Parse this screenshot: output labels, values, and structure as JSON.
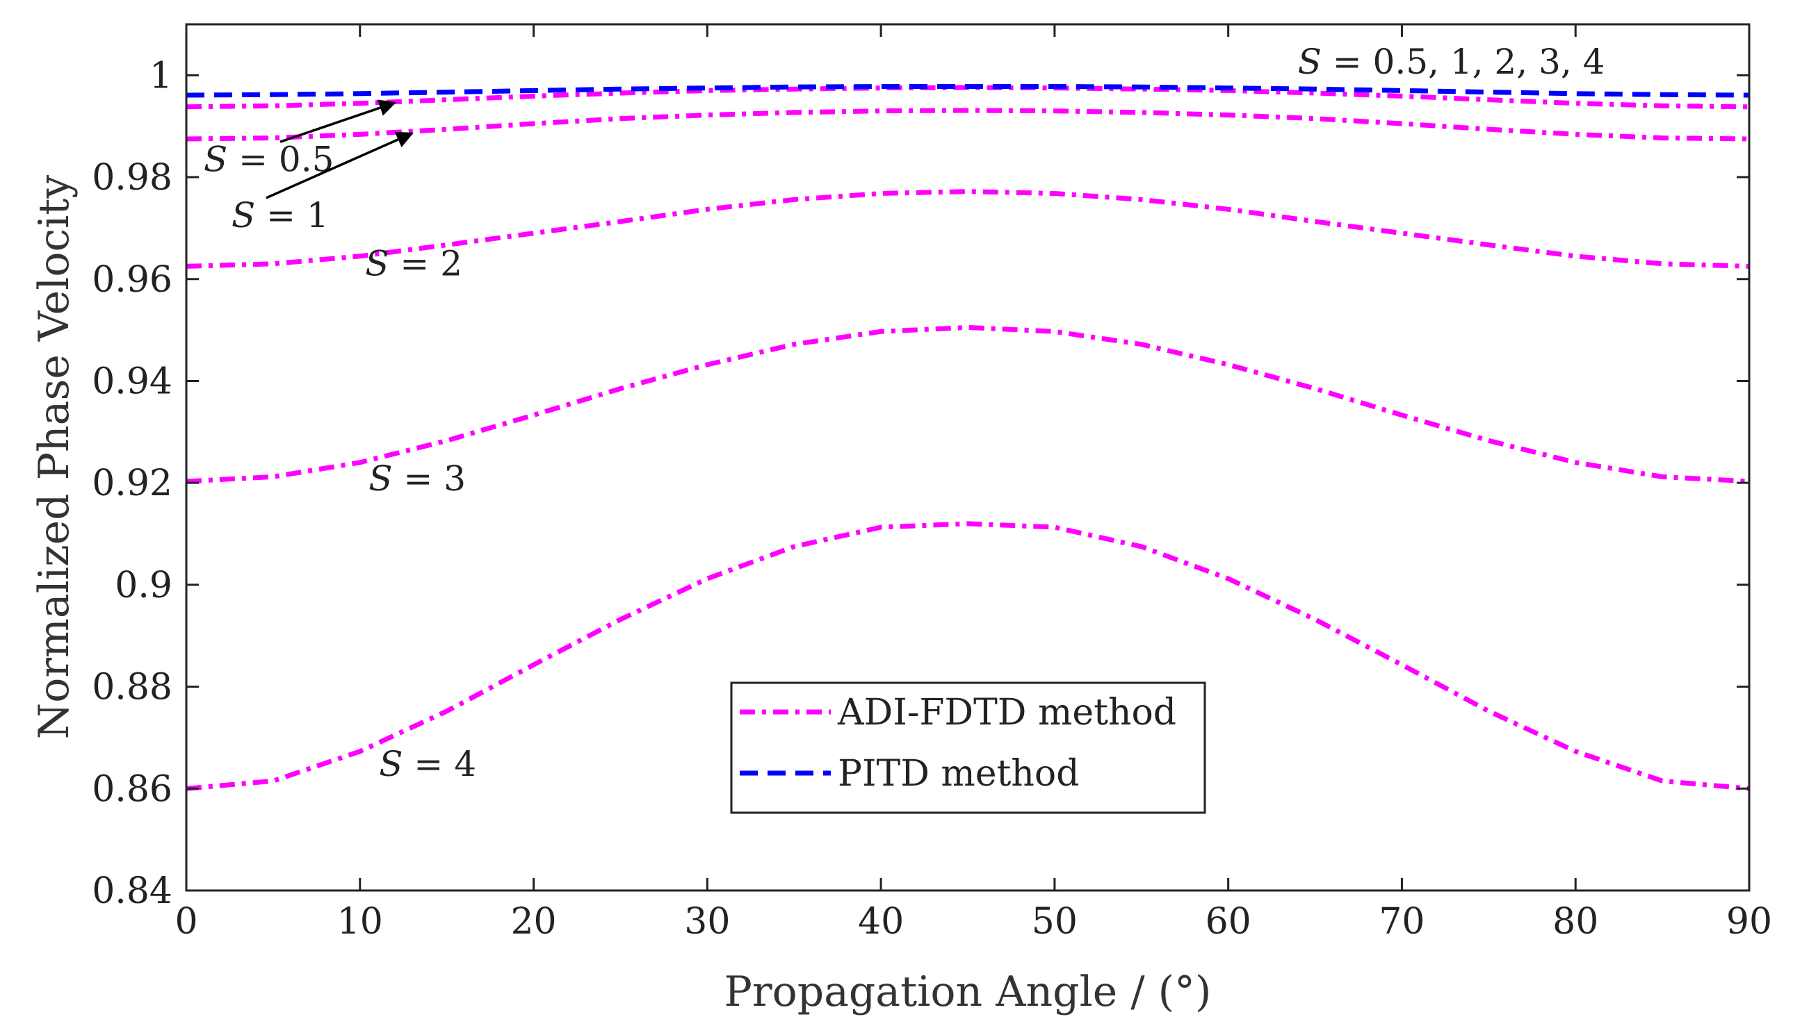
{
  "chart_data": {
    "type": "line",
    "title": "",
    "xlabel": "Propagation Angle / (°)",
    "ylabel": "Normalized Phase Velocity",
    "xlim": [
      0,
      90
    ],
    "ylim": [
      0.84,
      1.01
    ],
    "xticks": [
      0,
      10,
      20,
      30,
      40,
      50,
      60,
      70,
      80,
      90
    ],
    "xtick_labels": [
      "0",
      "10",
      "20",
      "30",
      "40",
      "50",
      "60",
      "70",
      "80",
      "90"
    ],
    "yticks": [
      0.84,
      0.86,
      0.88,
      0.9,
      0.92,
      0.94,
      0.96,
      0.98,
      1.0
    ],
    "ytick_labels": [
      "0.84",
      "0.86",
      "0.88",
      "0.9",
      "0.92",
      "0.94",
      "0.96",
      "0.98",
      "1"
    ],
    "grid": false,
    "legend_position": "lower-center",
    "x": [
      0,
      5,
      10,
      15,
      20,
      25,
      30,
      35,
      40,
      45,
      50,
      55,
      60,
      65,
      70,
      75,
      80,
      85,
      90
    ],
    "series": [
      {
        "name": "ADI-FDTD S = 0.5",
        "legend": "ADI-FDTD method",
        "color": "#ff00ff",
        "style": "dashdot",
        "values": [
          0.9938,
          0.994,
          0.9945,
          0.9952,
          0.9959,
          0.9965,
          0.997,
          0.9973,
          0.9975,
          0.9976,
          0.9975,
          0.9973,
          0.997,
          0.9965,
          0.9959,
          0.9952,
          0.9945,
          0.994,
          0.9938
        ]
      },
      {
        "name": "ADI-FDTD S = 1",
        "legend": "ADI-FDTD method",
        "color": "#ff00ff",
        "style": "dashdot",
        "values": [
          0.9875,
          0.9877,
          0.9884,
          0.9894,
          0.9905,
          0.9915,
          0.9922,
          0.9927,
          0.993,
          0.9931,
          0.993,
          0.9927,
          0.9922,
          0.9915,
          0.9905,
          0.9894,
          0.9884,
          0.9877,
          0.9875
        ]
      },
      {
        "name": "ADI-FDTD S = 2",
        "legend": "ADI-FDTD method",
        "color": "#ff00ff",
        "style": "dashdot",
        "values": [
          0.9625,
          0.963,
          0.9645,
          0.9667,
          0.969,
          0.9713,
          0.9737,
          0.9756,
          0.9768,
          0.9772,
          0.9768,
          0.9756,
          0.9737,
          0.9713,
          0.969,
          0.9667,
          0.9645,
          0.963,
          0.9625
        ]
      },
      {
        "name": "ADI-FDTD S = 3",
        "legend": "ADI-FDTD method",
        "color": "#ff00ff",
        "style": "dashdot",
        "values": [
          0.9203,
          0.9212,
          0.924,
          0.9283,
          0.9333,
          0.9385,
          0.9432,
          0.9472,
          0.9497,
          0.9505,
          0.9497,
          0.9472,
          0.9432,
          0.9385,
          0.9333,
          0.9283,
          0.924,
          0.9212,
          0.9203
        ]
      },
      {
        "name": "ADI-FDTD S = 4",
        "legend": "ADI-FDTD method",
        "color": "#ff00ff",
        "style": "dashdot",
        "values": [
          0.86,
          0.8615,
          0.8673,
          0.8752,
          0.8843,
          0.8932,
          0.9012,
          0.9075,
          0.9113,
          0.912,
          0.9113,
          0.9075,
          0.9012,
          0.8932,
          0.8843,
          0.8752,
          0.8673,
          0.8615,
          0.86
        ]
      },
      {
        "name": "PITD S = 0.5, 1, 2, 3, 4",
        "legend": "PITD method",
        "color": "#0000ff",
        "style": "dashed",
        "values": [
          0.9961,
          0.9962,
          0.9964,
          0.9967,
          0.997,
          0.9973,
          0.9975,
          0.9977,
          0.9978,
          0.9978,
          0.9978,
          0.9977,
          0.9975,
          0.9973,
          0.997,
          0.9967,
          0.9964,
          0.9962,
          0.9961
        ]
      }
    ],
    "legend": [
      {
        "label": "ADI-FDTD method",
        "color": "#ff00ff",
        "style": "dashdot"
      },
      {
        "label": "PITD method",
        "color": "#0000ff",
        "style": "dashed"
      }
    ],
    "annotations": [
      {
        "var": "S",
        "rest": " = 0.5, 1, 2, 3, 4",
        "anchor_x": 64,
        "anchor_y": 1.0003,
        "arrow": false
      },
      {
        "var": "S",
        "rest": " = 0.5",
        "anchor_x": 1,
        "anchor_y": 0.9812,
        "arrow": true,
        "arrow_to_x": 12,
        "arrow_to_y": 0.9946
      },
      {
        "var": "S",
        "rest": " = 1",
        "anchor_x": 2.6,
        "anchor_y": 0.9702,
        "arrow": true,
        "arrow_to_x": 13,
        "arrow_to_y": 0.9886
      },
      {
        "var": "S",
        "rest": " = 2",
        "anchor_x": 10.3,
        "anchor_y": 0.9607,
        "arrow": false
      },
      {
        "var": "S",
        "rest": " = 3",
        "anchor_x": 10.5,
        "anchor_y": 0.9185,
        "arrow": false
      },
      {
        "var": "S",
        "rest": " = 4",
        "anchor_x": 11.1,
        "anchor_y": 0.8625,
        "arrow": false
      }
    ]
  }
}
